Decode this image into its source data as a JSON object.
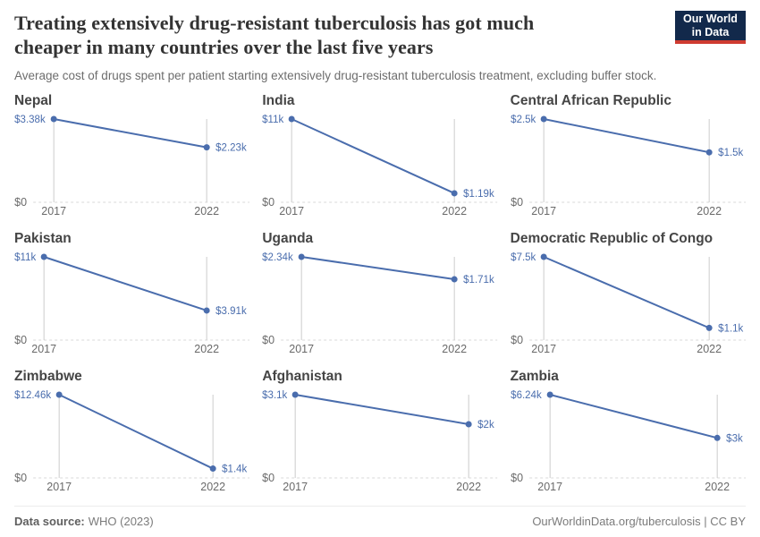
{
  "header": {
    "title": "Treating extensively drug-resistant tuberculosis has got much cheaper in many countries over the last five years",
    "subtitle": "Average cost of drugs spent per patient starting extensively drug-resistant tuberculosis treatment, excluding buffer stock.",
    "logo": {
      "line1": "Our World",
      "line2": "in Data"
    }
  },
  "colors": {
    "accent_blue": "#4a6dad",
    "grid_gray": "#cccccc",
    "baseline_gray": "#d9d9d9",
    "axis_text_gray": "#6a6a6a",
    "logo_navy": "#12294b",
    "logo_red": "#cf3b31"
  },
  "chart_data": [
    {
      "type": "line",
      "title": "Nepal",
      "x": [
        "2017",
        "2022"
      ],
      "values": [
        3380,
        2230
      ],
      "point_labels": [
        "$3.38k",
        "$2.23k"
      ],
      "y0_label": "$0",
      "ylim": [
        0,
        3380
      ]
    },
    {
      "type": "line",
      "title": "India",
      "x": [
        "2017",
        "2022"
      ],
      "values": [
        11000,
        1190
      ],
      "point_labels": [
        "$11k",
        "$1.19k"
      ],
      "y0_label": "$0",
      "ylim": [
        0,
        11000
      ]
    },
    {
      "type": "line",
      "title": "Central African Republic",
      "x": [
        "2017",
        "2022"
      ],
      "values": [
        2500,
        1500
      ],
      "point_labels": [
        "$2.5k",
        "$1.5k"
      ],
      "y0_label": "$0",
      "ylim": [
        0,
        2500
      ]
    },
    {
      "type": "line",
      "title": "Pakistan",
      "x": [
        "2017",
        "2022"
      ],
      "values": [
        11000,
        3910
      ],
      "point_labels": [
        "$11k",
        "$3.91k"
      ],
      "y0_label": "$0",
      "ylim": [
        0,
        11000
      ]
    },
    {
      "type": "line",
      "title": "Uganda",
      "x": [
        "2017",
        "2022"
      ],
      "values": [
        2340,
        1710
      ],
      "point_labels": [
        "$2.34k",
        "$1.71k"
      ],
      "y0_label": "$0",
      "ylim": [
        0,
        2340
      ]
    },
    {
      "type": "line",
      "title": "Democratic Republic of Congo",
      "x": [
        "2017",
        "2022"
      ],
      "values": [
        7500,
        1100
      ],
      "point_labels": [
        "$7.5k",
        "$1.1k"
      ],
      "y0_label": "$0",
      "ylim": [
        0,
        7500
      ]
    },
    {
      "type": "line",
      "title": "Zimbabwe",
      "x": [
        "2017",
        "2022"
      ],
      "values": [
        12460,
        1400
      ],
      "point_labels": [
        "$12.46k",
        "$1.4k"
      ],
      "y0_label": "$0",
      "ylim": [
        0,
        12460
      ]
    },
    {
      "type": "line",
      "title": "Afghanistan",
      "x": [
        "2017",
        "2022"
      ],
      "values": [
        3100,
        2000
      ],
      "point_labels": [
        "$3.1k",
        "$2k"
      ],
      "y0_label": "$0",
      "ylim": [
        0,
        3100
      ]
    },
    {
      "type": "line",
      "title": "Zambia",
      "x": [
        "2017",
        "2022"
      ],
      "values": [
        6240,
        3000
      ],
      "point_labels": [
        "$6.24k",
        "$3k"
      ],
      "y0_label": "$0",
      "ylim": [
        0,
        6240
      ]
    }
  ],
  "footer": {
    "source_label": "Data source:",
    "source_value": "WHO (2023)",
    "link": "OurWorldinData.org/tuberculosis",
    "separator": " | ",
    "license": "CC BY"
  }
}
